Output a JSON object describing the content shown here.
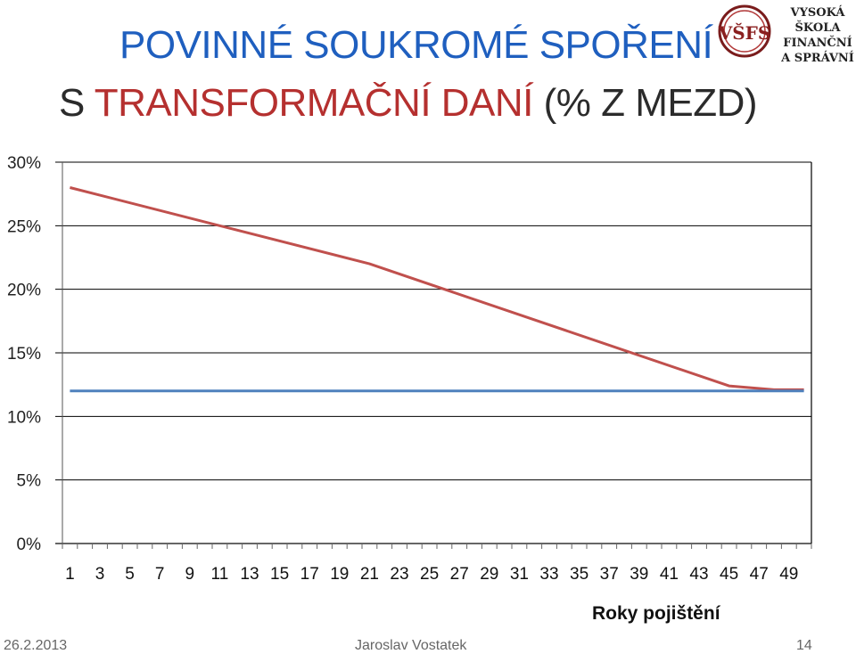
{
  "title_line1": "POVINNÉ SOUKROMÉ SPOŘENÍ",
  "title_line2_prefix": "S ",
  "title_line2_red": "TRANSFORMAČNÍ DANÍ",
  "title_line2_suffix": " (% Z MEZD)",
  "logo": {
    "monogram": "VŠFS",
    "text_lines": [
      "VYSOKÁ ŠKOLA",
      "FINANČNÍ",
      "A SPRÁVNÍ"
    ]
  },
  "footer": {
    "date": "26.2.2013",
    "author": "Jaroslav Vostatek",
    "page": "14"
  },
  "colors": {
    "red_series": "#c0504d",
    "blue_series": "#4f81bd",
    "title_blue": "#1f5fbf",
    "title_red": "#b5302f"
  },
  "chart_data": {
    "type": "line",
    "xlabel": "Roky pojištění",
    "ylabel": "",
    "ylim": [
      0,
      0.3
    ],
    "y_ticks": [
      "0%",
      "5%",
      "10%",
      "15%",
      "20%",
      "25%",
      "30%"
    ],
    "x_range": [
      1,
      50
    ],
    "x_tick_labels": [
      "1",
      "3",
      "5",
      "7",
      "9",
      "11",
      "13",
      "15",
      "17",
      "19",
      "21",
      "23",
      "25",
      "27",
      "29",
      "31",
      "33",
      "35",
      "37",
      "39",
      "41",
      "43",
      "45",
      "47",
      "49"
    ],
    "grid": true,
    "legend": "none",
    "series": [
      {
        "color": "#c0504d",
        "points": [
          [
            1,
            0.28
          ],
          [
            21,
            0.22
          ],
          [
            45,
            0.124
          ],
          [
            48,
            0.121
          ],
          [
            50,
            0.121
          ]
        ]
      },
      {
        "color": "#4f81bd",
        "points": [
          [
            1,
            0.12
          ],
          [
            50,
            0.12
          ]
        ]
      }
    ]
  }
}
